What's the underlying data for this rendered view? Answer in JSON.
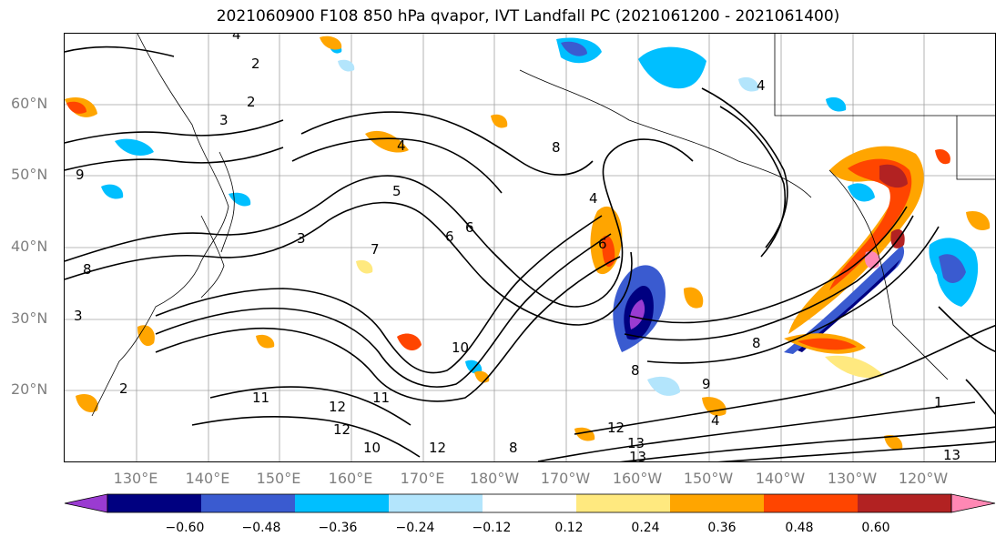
{
  "title": "2021060900 F108 850 hPa qvapor, IVT Landfall PC (2021061200 - 2021061400)",
  "lat_labels": [
    "60°N",
    "50°N",
    "40°N",
    "30°N",
    "20°N"
  ],
  "lon_labels": [
    "130°E",
    "140°E",
    "150°E",
    "160°E",
    "170°E",
    "180°W",
    "170°W",
    "160°W",
    "150°W",
    "140°W",
    "130°W",
    "120°W"
  ],
  "colorbar": {
    "colors": [
      "#9a3bd1",
      "#000080",
      "#3a5bd0",
      "#00bfff",
      "#b3e5fc",
      "#ffffff",
      "#ffe97f",
      "#ffa500",
      "#ff4500",
      "#b22222",
      "#ff88b4"
    ],
    "ticks": [
      "−0.60",
      "−0.48",
      "−0.36",
      "−0.24",
      "−0.12",
      "0.12",
      "0.24",
      "0.36",
      "0.48",
      "0.60"
    ]
  },
  "contour_labels": [
    "4",
    "2",
    "3",
    "4",
    "5",
    "8",
    "6",
    "6",
    "4",
    "6",
    "7",
    "9",
    "8",
    "3",
    "2",
    "10",
    "11",
    "12",
    "12",
    "10",
    "11",
    "12",
    "13",
    "13",
    "12",
    "8",
    "9",
    "8",
    "8",
    "4",
    "4",
    "1",
    "2",
    "3",
    "13"
  ]
}
